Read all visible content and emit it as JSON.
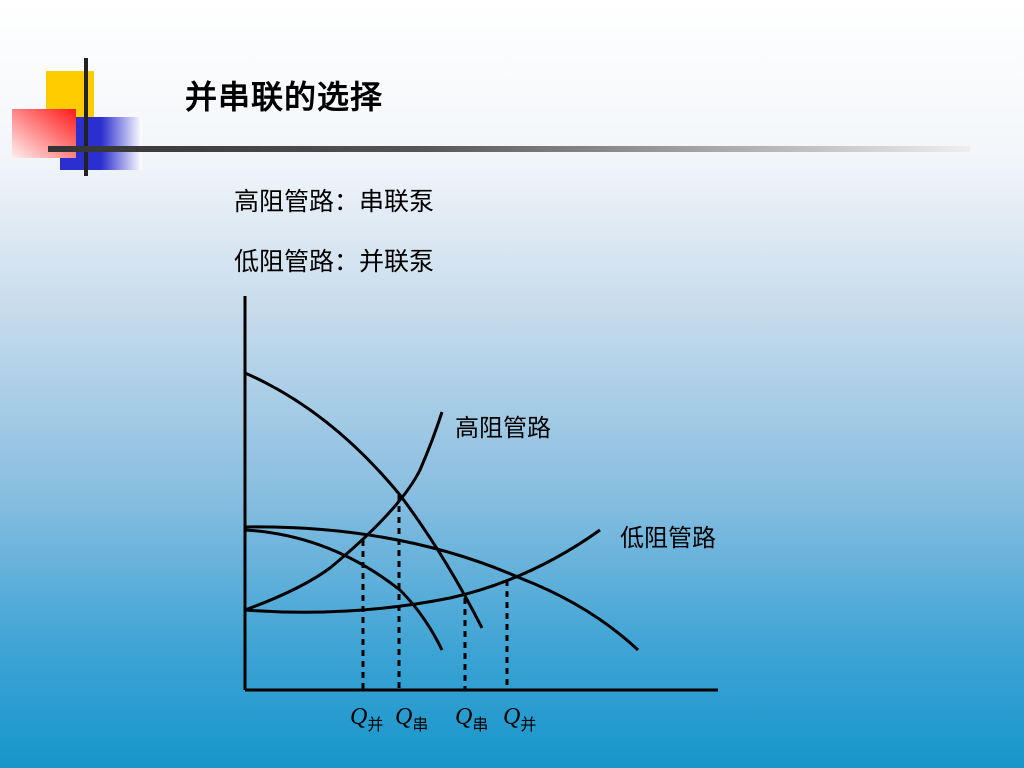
{
  "slide": {
    "title": "并串联的选择",
    "bullets": [
      "高阻管路：串联泵",
      "低阻管路：并联泵"
    ]
  },
  "diagram": {
    "curve_labels": {
      "high_resistance": "高阻管路",
      "low_resistance": "低阻管路"
    },
    "flow_labels": [
      {
        "symbol": "Q",
        "subscript": "并"
      },
      {
        "symbol": "Q",
        "subscript": "串"
      },
      {
        "symbol": "Q",
        "subscript": "串"
      },
      {
        "symbol": "Q",
        "subscript": "并"
      }
    ]
  },
  "colors": {
    "logo_yellow": "#ffcc00",
    "logo_red": "#ff2020",
    "logo_blue": "#2b2fd0",
    "rule": "#333333"
  }
}
